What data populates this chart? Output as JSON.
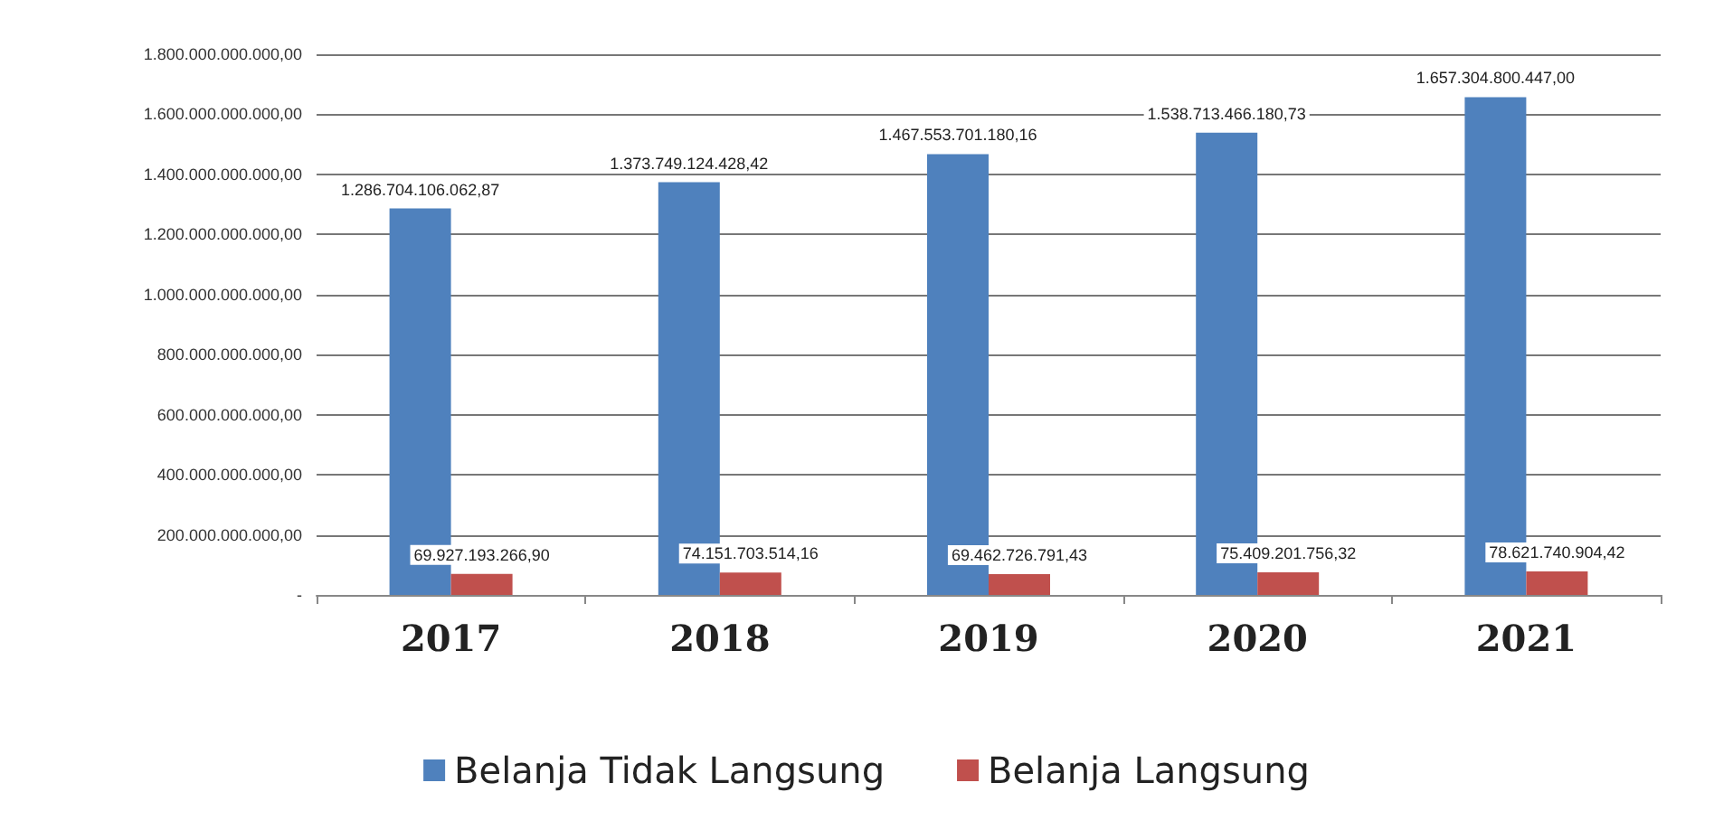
{
  "chart_data": {
    "type": "bar",
    "categories": [
      "2017",
      "2018",
      "2019",
      "2020",
      "2021"
    ],
    "series": [
      {
        "name": "Belanja Tidak Langsung",
        "color": "#4f81bd",
        "values": [
          1286704106062.87,
          1373749124428.42,
          1467553701180.16,
          1538713466180.73,
          1657304800447.0
        ],
        "value_labels": [
          "1.286.704.106.062,87",
          "1.373.749.124.428,42",
          "1.467.553.701.180,16",
          "1.538.713.466.180,73",
          "1.657.304.800.447,00"
        ]
      },
      {
        "name": "Belanja Langsung",
        "color": "#c0504d",
        "values": [
          69927193266.9,
          74151703514.16,
          69462726791.43,
          75409201756.32,
          78621740904.42
        ],
        "value_labels": [
          "69.927.193.266,90",
          "74.151.703.514,16",
          "69.462.726.791,43",
          "75.409.201.756,32",
          "78.621.740.904,42"
        ]
      }
    ],
    "ylim": [
      0,
      1800000000000
    ],
    "yticks": [
      {
        "value": 0,
        "label": "-"
      },
      {
        "value": 200000000000,
        "label": "200.000.000.000,00"
      },
      {
        "value": 400000000000,
        "label": "400.000.000.000,00"
      },
      {
        "value": 600000000000,
        "label": "600.000.000.000,00"
      },
      {
        "value": 800000000000,
        "label": "800.000.000.000,00"
      },
      {
        "value": 1000000000000,
        "label": "1.000.000.000.000,00"
      },
      {
        "value": 1200000000000,
        "label": "1.200.000.000.000,00"
      },
      {
        "value": 1400000000000,
        "label": "1.400.000.000.000,00"
      },
      {
        "value": 1600000000000,
        "label": "1.600.000.000.000,00"
      },
      {
        "value": 1800000000000,
        "label": "1.800.000.000.000,00"
      }
    ],
    "grid": "y",
    "legend": "bottom"
  }
}
